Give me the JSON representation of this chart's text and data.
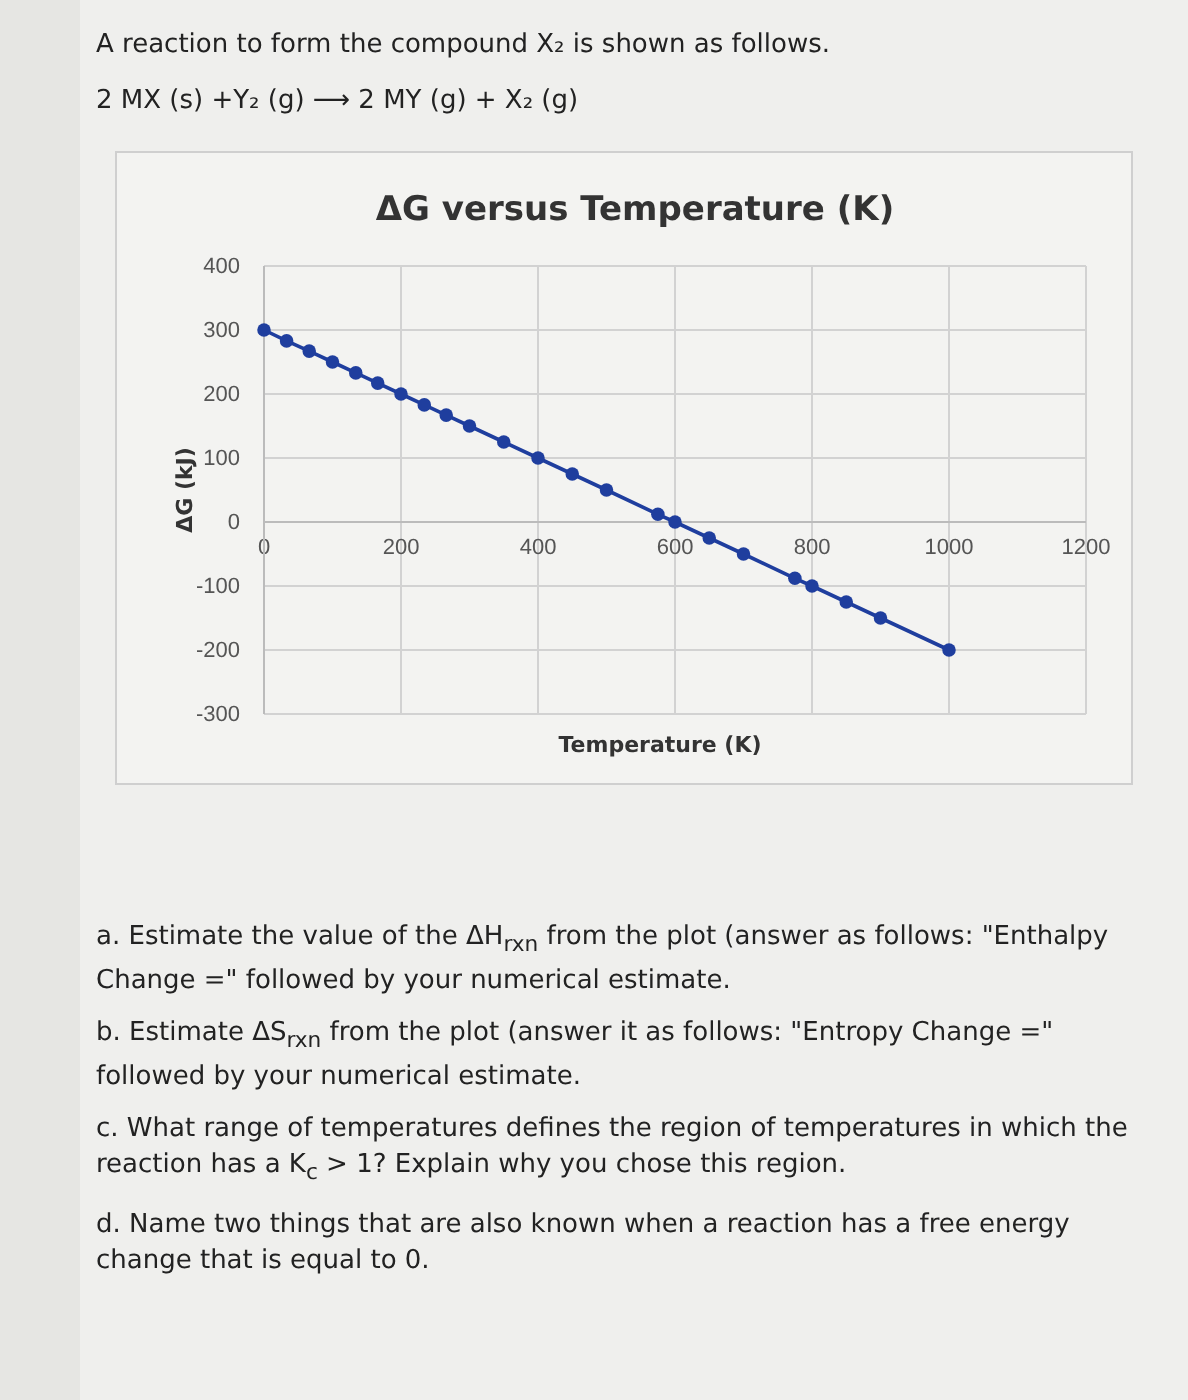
{
  "chart_data": {
    "type": "line",
    "title": "ΔG versus Temperature (K)",
    "xlabel": "Temperature (K)",
    "ylabel": "ΔG (kJ)",
    "x": [
      0,
      33,
      66,
      100,
      134,
      166,
      200,
      234,
      266,
      300,
      350,
      400,
      450,
      500,
      575,
      600,
      650,
      700,
      775,
      800,
      850,
      900,
      1000
    ],
    "series": [
      {
        "color": "#1f3e9e",
        "values": [
          300,
          283,
          267,
          250,
          233,
          217,
          200,
          183,
          167,
          150,
          125,
          100,
          75,
          50,
          12,
          0,
          -25,
          -50,
          -88,
          -100,
          -125,
          -150,
          -200
        ]
      }
    ],
    "xlim": [
      0,
      1200
    ],
    "ylim": [
      -300,
      400
    ],
    "xticks": [
      0,
      200,
      400,
      600,
      800,
      1000,
      1200
    ],
    "yticks": [
      -300,
      -200,
      -100,
      0,
      100,
      200,
      300,
      400
    ],
    "grid": true,
    "marker": "circle",
    "line_style": "solid",
    "annotations": [
      "A reaction to form the compound X₂ is shown as follows.",
      "2 MX (s) +Y₂ (g)  ⟶  2 MY (g) + X₂ (g)",
      "a. Estimate the value of the ΔH$_{rxn}$ from the plot (answer as follows: \"Enthalpy Change =\" followed by your numerical estimate.",
      "b. Estimate ΔS$_{rxn}$ from the plot (answer it as follows: \"Entropy Change =\" followed by your numerical estimate.",
      "c. What range of temperatures defines the region of temperatures in which the reaction has a K$_{c}$ > 1? Explain why you chose this region.",
      "d. Name two things that are also known when a reaction has a free energy change that is equal to 0."
    ]
  }
}
